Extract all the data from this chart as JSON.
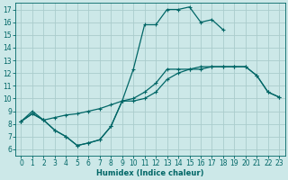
{
  "xlabel": "Humidex (Indice chaleur)",
  "background_color": "#cce8e8",
  "grid_color": "#aacccc",
  "line_color": "#006666",
  "xlim": [
    -0.5,
    23.5
  ],
  "ylim": [
    5.5,
    17.5
  ],
  "xticks": [
    0,
    1,
    2,
    3,
    4,
    5,
    6,
    7,
    8,
    9,
    10,
    11,
    12,
    13,
    14,
    15,
    16,
    17,
    18,
    19,
    20,
    21,
    22,
    23
  ],
  "yticks": [
    6,
    7,
    8,
    9,
    10,
    11,
    12,
    13,
    14,
    15,
    16,
    17
  ],
  "curve_top_x": [
    0,
    1,
    2,
    3,
    4,
    5,
    6,
    7,
    8,
    9,
    10,
    11,
    12,
    13,
    14,
    15,
    16,
    17,
    18
  ],
  "curve_top_y": [
    8.2,
    9.0,
    8.3,
    7.5,
    7.0,
    6.3,
    6.5,
    6.75,
    7.8,
    9.8,
    12.3,
    15.8,
    15.8,
    17.0,
    17.0,
    17.2,
    16.0,
    16.2,
    15.4
  ],
  "curve_mid_x": [
    0,
    1,
    2,
    3,
    4,
    5,
    6,
    7,
    8,
    9,
    10,
    11,
    12,
    13,
    14,
    15,
    16,
    17,
    18,
    19,
    20,
    21,
    22,
    23
  ],
  "curve_mid_y": [
    8.2,
    8.8,
    8.3,
    8.5,
    8.7,
    8.8,
    9.0,
    9.2,
    9.5,
    9.8,
    10.0,
    10.5,
    11.2,
    12.3,
    12.3,
    12.3,
    12.5,
    12.5,
    12.5,
    12.5,
    12.5,
    11.8,
    10.5,
    10.1
  ],
  "curve_bot_x": [
    0,
    1,
    2,
    3,
    4,
    5,
    6,
    7,
    8,
    9,
    10,
    11,
    12,
    13,
    14,
    15,
    16,
    17,
    18,
    19,
    20,
    21,
    22,
    23
  ],
  "curve_bot_y": [
    8.2,
    8.8,
    8.3,
    7.5,
    7.0,
    6.3,
    6.5,
    6.75,
    7.8,
    9.8,
    9.8,
    10.0,
    10.5,
    11.5,
    12.0,
    12.3,
    12.3,
    12.5,
    12.5,
    12.5,
    12.5,
    11.8,
    10.5,
    10.1
  ]
}
